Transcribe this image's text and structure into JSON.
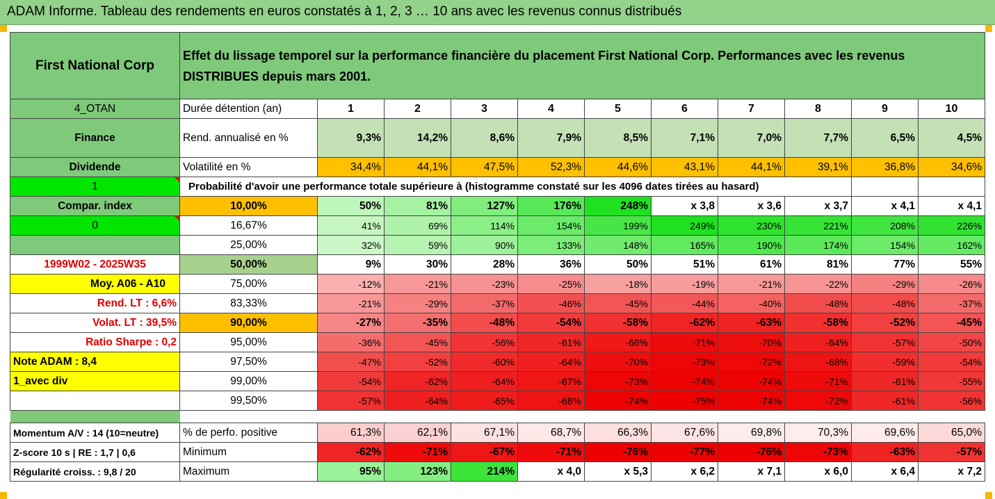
{
  "header": {
    "title": "ADAM Informe. Tableau des rendements en euros constatés à 1, 2, 3 … 10 ans avec les revenus connus distribués",
    "bar_color": "#92d28a"
  },
  "left": {
    "company": "First National Corp",
    "code": "4_OTAN",
    "sector": "Finance",
    "dividend": "Dividende",
    "flag1": "1",
    "compar": "Compar. index",
    "flag2": "0",
    "period": "1999W02 - 2025W35",
    "moy": "Moy. A06 - A10",
    "rend_lt": "Rend. LT :   6,6%",
    "volat_lt": "Volat. LT :   39,5%",
    "sharpe": "Ratio Sharpe :   0,2",
    "note": "Note ADAM : 8,4",
    "avec_div": "1_avec div",
    "momentum": "Momentum A/V : 14 (10=neutre)",
    "zscore": "Z-score 10 s  | RE : 1,7 | 0,6",
    "regularite": "Régularité croiss. : 9,8 / 20"
  },
  "heading_text": "Effet du lissage temporel sur la performance financière du placement First National Corp. Performances avec les revenus DISTRIBUES depuis mars 2001.",
  "labels": {
    "duree": "Durée détention (an)",
    "rend": "Rend. annualisé en %",
    "vol": "Volatilité en %",
    "proba": "Probabilité d'avoir une performance totale supérieure à (histogramme constaté sur les 4096 dates tirées au hasard)",
    "perf_pos": "% de perfo. positive",
    "minimum": "Minimum",
    "maximum": "Maximum"
  },
  "years": [
    "1",
    "2",
    "3",
    "4",
    "5",
    "6",
    "7",
    "8",
    "9",
    "10"
  ],
  "rend": [
    "9,3%",
    "14,2%",
    "8,6%",
    "7,9%",
    "8,5%",
    "7,1%",
    "7,0%",
    "7,7%",
    "6,5%",
    "4,5%"
  ],
  "vol": [
    "34,4%",
    "44,1%",
    "47,5%",
    "52,3%",
    "44,6%",
    "43,1%",
    "44,1%",
    "39,1%",
    "36,8%",
    "34,6%"
  ],
  "quantiles": [
    {
      "q": "10,00%",
      "v": [
        "50%",
        "81%",
        "127%",
        "176%",
        "248%",
        "x 3,8",
        "x 3,6",
        "x 3,7",
        "x 4,1",
        "x 4,1"
      ]
    },
    {
      "q": "16,67%",
      "v": [
        "41%",
        "69%",
        "114%",
        "154%",
        "199%",
        "249%",
        "230%",
        "221%",
        "208%",
        "226%"
      ]
    },
    {
      "q": "25,00%",
      "v": [
        "32%",
        "59%",
        "90%",
        "133%",
        "148%",
        "165%",
        "190%",
        "174%",
        "154%",
        "162%"
      ]
    },
    {
      "q": "50,00%",
      "v": [
        "9%",
        "30%",
        "28%",
        "36%",
        "50%",
        "51%",
        "61%",
        "81%",
        "77%",
        "55%"
      ]
    },
    {
      "q": "75,00%",
      "v": [
        "-12%",
        "-21%",
        "-23%",
        "-25%",
        "-18%",
        "-19%",
        "-21%",
        "-22%",
        "-29%",
        "-26%"
      ]
    },
    {
      "q": "83,33%",
      "v": [
        "-21%",
        "-29%",
        "-37%",
        "-46%",
        "-45%",
        "-44%",
        "-40%",
        "-48%",
        "-48%",
        "-37%"
      ]
    },
    {
      "q": "90,00%",
      "v": [
        "-27%",
        "-35%",
        "-48%",
        "-54%",
        "-58%",
        "-62%",
        "-63%",
        "-58%",
        "-52%",
        "-45%"
      ]
    },
    {
      "q": "95,00%",
      "v": [
        "-36%",
        "-45%",
        "-56%",
        "-61%",
        "-66%",
        "-71%",
        "-70%",
        "-64%",
        "-57%",
        "-50%"
      ]
    },
    {
      "q": "97,50%",
      "v": [
        "-47%",
        "-52%",
        "-60%",
        "-64%",
        "-70%",
        "-73%",
        "-72%",
        "-68%",
        "-59%",
        "-54%"
      ]
    },
    {
      "q": "99,00%",
      "v": [
        "-54%",
        "-62%",
        "-64%",
        "-67%",
        "-73%",
        "-74%",
        "-74%",
        "-71%",
        "-61%",
        "-55%"
      ]
    },
    {
      "q": "99,50%",
      "v": [
        "-57%",
        "-64%",
        "-65%",
        "-68%",
        "-74%",
        "-75%",
        "-74%",
        "-72%",
        "-61%",
        "-56%"
      ]
    }
  ],
  "perf_pos": [
    "61,3%",
    "62,1%",
    "67,1%",
    "68,7%",
    "66,3%",
    "67,6%",
    "69,8%",
    "70,3%",
    "69,6%",
    "65,0%"
  ],
  "minimum": [
    "-62%",
    "-71%",
    "-67%",
    "-71%",
    "-76%",
    "-77%",
    "-76%",
    "-73%",
    "-63%",
    "-57%"
  ],
  "maximum": [
    "95%",
    "123%",
    "214%",
    "x 4,0",
    "x 5,3",
    "x 6,2",
    "x 7,1",
    "x 6,0",
    "x 6,4",
    "x 7,2"
  ],
  "colors": {
    "label_green": "#7fc97b",
    "bright_green": "#00e600",
    "yellow": "#ffff00",
    "orange": "#ffc000",
    "light_olive": "#c4e0b5",
    "olive": "#a9d18e",
    "red_text": "#e00000"
  }
}
